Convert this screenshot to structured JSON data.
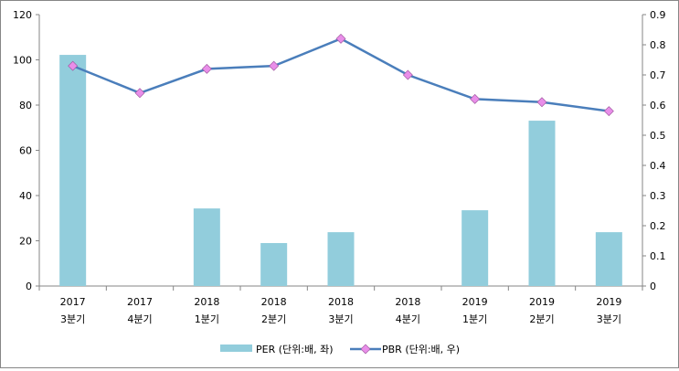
{
  "chart_data": {
    "type": "bar+line",
    "categories": [
      [
        "2017",
        "3분기"
      ],
      [
        "2017",
        "4분기"
      ],
      [
        "2018",
        "1분기"
      ],
      [
        "2018",
        "2분기"
      ],
      [
        "2018",
        "3분기"
      ],
      [
        "2018",
        "4분기"
      ],
      [
        "2019",
        "1분기"
      ],
      [
        "2019",
        "2분기"
      ],
      [
        "2019",
        "3분기"
      ]
    ],
    "series": [
      {
        "name": "PER (단위:배, 좌)",
        "type": "bar",
        "axis": "left",
        "color": "#92CDDC",
        "values": [
          102.2,
          null,
          34.3,
          19.0,
          23.8,
          null,
          33.5,
          73.1,
          23.8
        ]
      },
      {
        "name": "PBR (단위:배, 우)",
        "type": "line",
        "axis": "right",
        "color": "#4A7EBB",
        "marker_color": "#E98EE9",
        "values": [
          0.73,
          0.64,
          0.72,
          0.73,
          0.82,
          0.7,
          0.62,
          0.61,
          0.58
        ]
      }
    ],
    "left_axis": {
      "min": 0,
      "max": 120,
      "ticks": [
        "0",
        "20",
        "40",
        "60",
        "80",
        "100",
        "120"
      ]
    },
    "right_axis": {
      "min": 0,
      "max": 0.9,
      "ticks": [
        "0",
        "0.1",
        "0.2",
        "0.3",
        "0.4",
        "0.5",
        "0.6",
        "0.7",
        "0.8",
        "0.9"
      ]
    },
    "legend": "bottom",
    "grid": false
  }
}
